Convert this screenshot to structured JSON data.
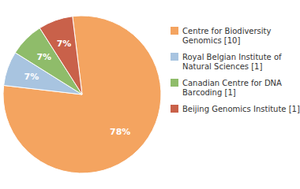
{
  "chart_data": {
    "type": "pie",
    "categories": [
      "Centre for Biodiversity\nGenomics [10]",
      "Royal Belgian Institute of\nNatural Sciences [1]",
      "Canadian Centre for DNA\nBarcoding [1]",
      "Beijing Genomics Institute [1]"
    ],
    "values": [
      78,
      7,
      7,
      7
    ],
    "value_labels": [
      "78%",
      "7%",
      "7%",
      "7%"
    ],
    "colors": [
      "#F4A460",
      "#A8C4E0",
      "#8FBC6A",
      "#C9614A"
    ],
    "data_labels": true,
    "legend": "right"
  }
}
